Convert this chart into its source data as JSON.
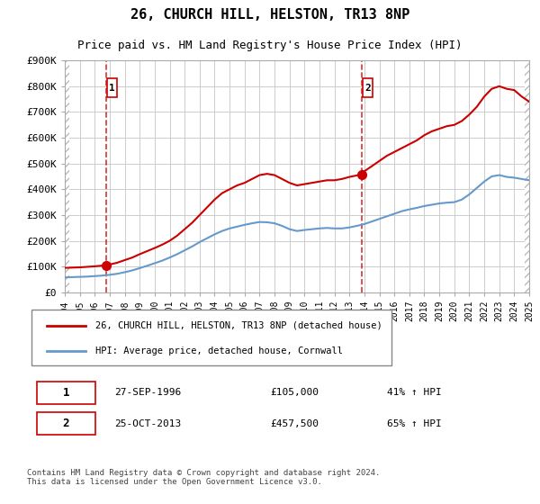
{
  "title": "26, CHURCH HILL, HELSTON, TR13 8NP",
  "subtitle": "Price paid vs. HM Land Registry's House Price Index (HPI)",
  "ylabel": "",
  "bg_color": "#ffffff",
  "plot_bg_color": "#ffffff",
  "grid_color": "#cccccc",
  "hatch_color": "#dddddd",
  "red_color": "#cc0000",
  "blue_color": "#6699cc",
  "red_label": "26, CHURCH HILL, HELSTON, TR13 8NP (detached house)",
  "blue_label": "HPI: Average price, detached house, Cornwall",
  "transaction1_date": 1996.75,
  "transaction1_price": 105000,
  "transaction1_label": "1",
  "transaction2_date": 2013.81,
  "transaction2_price": 457500,
  "transaction2_label": "2",
  "footer": "Contains HM Land Registry data © Crown copyright and database right 2024.\nThis data is licensed under the Open Government Licence v3.0.",
  "red_x": [
    1994.0,
    1994.5,
    1995.0,
    1995.5,
    1996.0,
    1996.75,
    1997.0,
    1997.5,
    1998.0,
    1998.5,
    1999.0,
    1999.5,
    2000.0,
    2000.5,
    2001.0,
    2001.5,
    2002.0,
    2002.5,
    2003.0,
    2003.5,
    2004.0,
    2004.5,
    2005.0,
    2005.5,
    2006.0,
    2006.5,
    2007.0,
    2007.5,
    2008.0,
    2008.5,
    2009.0,
    2009.5,
    2010.0,
    2010.5,
    2011.0,
    2011.5,
    2012.0,
    2012.5,
    2013.0,
    2013.81,
    2014.0,
    2014.5,
    2015.0,
    2015.5,
    2016.0,
    2016.5,
    2017.0,
    2017.5,
    2018.0,
    2018.5,
    2019.0,
    2019.5,
    2020.0,
    2020.5,
    2021.0,
    2021.5,
    2022.0,
    2022.5,
    2023.0,
    2023.5,
    2024.0,
    2024.5,
    2025.0
  ],
  "red_y": [
    95000,
    96000,
    97000,
    99000,
    101000,
    105000,
    108000,
    115000,
    125000,
    135000,
    148000,
    160000,
    172000,
    185000,
    200000,
    220000,
    245000,
    270000,
    300000,
    330000,
    360000,
    385000,
    400000,
    415000,
    425000,
    440000,
    455000,
    460000,
    455000,
    440000,
    425000,
    415000,
    420000,
    425000,
    430000,
    435000,
    435000,
    440000,
    448000,
    457500,
    470000,
    490000,
    510000,
    530000,
    545000,
    560000,
    575000,
    590000,
    610000,
    625000,
    635000,
    645000,
    650000,
    665000,
    690000,
    720000,
    760000,
    790000,
    800000,
    790000,
    785000,
    760000,
    740000
  ],
  "blue_x": [
    1994.0,
    1994.5,
    1995.0,
    1995.5,
    1996.0,
    1996.5,
    1997.0,
    1997.5,
    1998.0,
    1998.5,
    1999.0,
    1999.5,
    2000.0,
    2000.5,
    2001.0,
    2001.5,
    2002.0,
    2002.5,
    2003.0,
    2003.5,
    2004.0,
    2004.5,
    2005.0,
    2005.5,
    2006.0,
    2006.5,
    2007.0,
    2007.5,
    2008.0,
    2008.5,
    2009.0,
    2009.5,
    2010.0,
    2010.5,
    2011.0,
    2011.5,
    2012.0,
    2012.5,
    2013.0,
    2013.5,
    2014.0,
    2014.5,
    2015.0,
    2015.5,
    2016.0,
    2016.5,
    2017.0,
    2017.5,
    2018.0,
    2018.5,
    2019.0,
    2019.5,
    2020.0,
    2020.5,
    2021.0,
    2021.5,
    2022.0,
    2022.5,
    2023.0,
    2023.5,
    2024.0,
    2024.5,
    2025.0
  ],
  "blue_y": [
    58000,
    59000,
    60000,
    61000,
    63000,
    65000,
    68000,
    72000,
    78000,
    85000,
    94000,
    103000,
    113000,
    123000,
    135000,
    148000,
    163000,
    178000,
    195000,
    210000,
    225000,
    238000,
    248000,
    255000,
    262000,
    268000,
    273000,
    272000,
    268000,
    258000,
    245000,
    238000,
    242000,
    245000,
    248000,
    250000,
    248000,
    248000,
    252000,
    258000,
    265000,
    275000,
    285000,
    295000,
    305000,
    315000,
    322000,
    328000,
    335000,
    340000,
    345000,
    348000,
    350000,
    360000,
    380000,
    405000,
    430000,
    450000,
    455000,
    448000,
    445000,
    440000,
    435000
  ],
  "ylim": [
    0,
    900000
  ],
  "xlim": [
    1994,
    2025
  ],
  "yticks": [
    0,
    100000,
    200000,
    300000,
    400000,
    500000,
    600000,
    700000,
    800000,
    900000
  ],
  "ytick_labels": [
    "£0",
    "£100K",
    "£200K",
    "£300K",
    "£400K",
    "£500K",
    "£600K",
    "£700K",
    "£800K",
    "£900K"
  ],
  "xticks": [
    1994,
    1995,
    1996,
    1997,
    1998,
    1999,
    2000,
    2001,
    2002,
    2003,
    2004,
    2005,
    2006,
    2007,
    2008,
    2009,
    2010,
    2011,
    2012,
    2013,
    2014,
    2015,
    2016,
    2017,
    2018,
    2019,
    2020,
    2021,
    2022,
    2023,
    2024,
    2025
  ]
}
